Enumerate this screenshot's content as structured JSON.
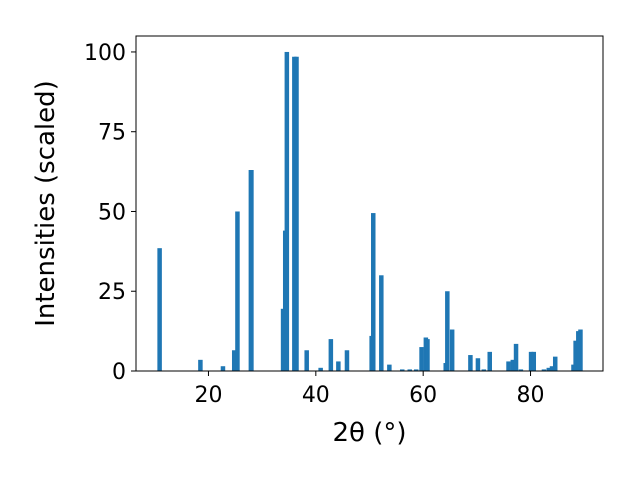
{
  "chart_data": {
    "type": "bar",
    "xlabel": "2θ (°)",
    "ylabel": "Intensities (scaled)",
    "xlim": [
      6.5,
      93.5
    ],
    "ylim": [
      0,
      105
    ],
    "x_ticks": [
      20,
      40,
      60,
      80
    ],
    "y_ticks": [
      0,
      25,
      50,
      75,
      100
    ],
    "grid": false,
    "bar_color": "#1f77b4",
    "series": [
      {
        "x": [
          10.9,
          18.5,
          22.7,
          24.8,
          25.4,
          27.9,
          28.0,
          33.9,
          34.3,
          34.6,
          36.0,
          36.4,
          38.3,
          40.9,
          42.8,
          44.2,
          45.8,
          50.4,
          50.7,
          52.2,
          53.7,
          56.1,
          57.5,
          58.7,
          59.7,
          60.5,
          60.8,
          64.2,
          64.5,
          65.4,
          68.8,
          70.2,
          71.3,
          72.4,
          75.9,
          76.7,
          77.3,
          78.2,
          80.1,
          80.6,
          82.5,
          83.4,
          84.0,
          84.6,
          88.0,
          88.4,
          88.9,
          89.3
        ],
        "values": [
          38.5,
          3.5,
          1.5,
          6.5,
          50.0,
          63.0,
          63.0,
          19.5,
          44.0,
          100.0,
          98.5,
          98.5,
          6.5,
          1.0,
          10.0,
          3.0,
          6.5,
          11.0,
          49.5,
          30.0,
          2.0,
          0.5,
          0.5,
          0.5,
          7.5,
          10.5,
          10.0,
          2.5,
          25.0,
          13.0,
          5.0,
          4.0,
          0.5,
          6.0,
          3.0,
          3.5,
          8.5,
          0.5,
          6.0,
          6.0,
          0.5,
          1.0,
          1.5,
          4.5,
          2.0,
          9.5,
          12.5,
          13.0
        ]
      }
    ]
  }
}
